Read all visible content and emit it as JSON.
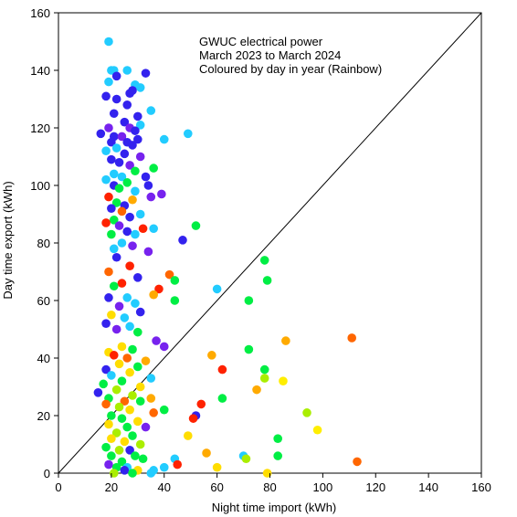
{
  "chart_data": {
    "type": "scatter",
    "title_lines": [
      "GWUC electrical power",
      "March 2023 to March 2024",
      "Coloured by day in year  (Rainbow)"
    ],
    "xlabel": "Night time import (kWh)",
    "ylabel": "Day time export (kWh)",
    "xlim": [
      0,
      160
    ],
    "ylim": [
      0,
      160
    ],
    "x_ticks": [
      0,
      20,
      40,
      60,
      80,
      100,
      120,
      140,
      160
    ],
    "y_ticks": [
      0,
      20,
      40,
      60,
      80,
      100,
      120,
      140,
      160
    ],
    "reference_line": {
      "from": [
        0,
        0
      ],
      "to": [
        160,
        160
      ]
    },
    "grid": false,
    "legend": "none",
    "color_scale": "rainbow by day in year",
    "points": [
      {
        "x": 19,
        "y": 150,
        "color": "#22ccff"
      },
      {
        "x": 20,
        "y": 140,
        "color": "#22ccff"
      },
      {
        "x": 21,
        "y": 140,
        "color": "#22ccff"
      },
      {
        "x": 26,
        "y": 140,
        "color": "#22ccff"
      },
      {
        "x": 33,
        "y": 139,
        "color": "#3322ee"
      },
      {
        "x": 22,
        "y": 138,
        "color": "#3322ee"
      },
      {
        "x": 19,
        "y": 136,
        "color": "#22ccff"
      },
      {
        "x": 29,
        "y": 135,
        "color": "#22ccff"
      },
      {
        "x": 31,
        "y": 134,
        "color": "#22ccff"
      },
      {
        "x": 28,
        "y": 133,
        "color": "#3322ee"
      },
      {
        "x": 27,
        "y": 132,
        "color": "#3322ee"
      },
      {
        "x": 18,
        "y": 131,
        "color": "#3322ee"
      },
      {
        "x": 22,
        "y": 130,
        "color": "#3322ee"
      },
      {
        "x": 26,
        "y": 128,
        "color": "#3322ee"
      },
      {
        "x": 35,
        "y": 126,
        "color": "#22ccff"
      },
      {
        "x": 21,
        "y": 125,
        "color": "#3322ee"
      },
      {
        "x": 30,
        "y": 124,
        "color": "#3322ee"
      },
      {
        "x": 25,
        "y": 122,
        "color": "#3322ee"
      },
      {
        "x": 31,
        "y": 121,
        "color": "#22ccff"
      },
      {
        "x": 19,
        "y": 120,
        "color": "#7722ee"
      },
      {
        "x": 27,
        "y": 120,
        "color": "#7722ee"
      },
      {
        "x": 29,
        "y": 119,
        "color": "#3322ee"
      },
      {
        "x": 49,
        "y": 118,
        "color": "#22ccff"
      },
      {
        "x": 16,
        "y": 118,
        "color": "#3322ee"
      },
      {
        "x": 21,
        "y": 117,
        "color": "#3322ee"
      },
      {
        "x": 24,
        "y": 117,
        "color": "#7722ee"
      },
      {
        "x": 30,
        "y": 116,
        "color": "#3322ee"
      },
      {
        "x": 40,
        "y": 116,
        "color": "#22ccff"
      },
      {
        "x": 20,
        "y": 115,
        "color": "#3322ee"
      },
      {
        "x": 26,
        "y": 115,
        "color": "#3322ee"
      },
      {
        "x": 28,
        "y": 114,
        "color": "#3322ee"
      },
      {
        "x": 22,
        "y": 113,
        "color": "#22ccff"
      },
      {
        "x": 18,
        "y": 112,
        "color": "#22ccff"
      },
      {
        "x": 25,
        "y": 111,
        "color": "#3322ee"
      },
      {
        "x": 31,
        "y": 110,
        "color": "#7722ee"
      },
      {
        "x": 20,
        "y": 109,
        "color": "#3322ee"
      },
      {
        "x": 23,
        "y": 108,
        "color": "#3322ee"
      },
      {
        "x": 27,
        "y": 107,
        "color": "#7722ee"
      },
      {
        "x": 36,
        "y": 106,
        "color": "#00ee44"
      },
      {
        "x": 29,
        "y": 105,
        "color": "#00ee44"
      },
      {
        "x": 21,
        "y": 104,
        "color": "#22ccff"
      },
      {
        "x": 24,
        "y": 103,
        "color": "#22ccff"
      },
      {
        "x": 33,
        "y": 103,
        "color": "#3322ee"
      },
      {
        "x": 18,
        "y": 102,
        "color": "#22ccff"
      },
      {
        "x": 26,
        "y": 101,
        "color": "#00ee44"
      },
      {
        "x": 34,
        "y": 100,
        "color": "#3322ee"
      },
      {
        "x": 21,
        "y": 100,
        "color": "#3322ee"
      },
      {
        "x": 23,
        "y": 99,
        "color": "#00ee44"
      },
      {
        "x": 29,
        "y": 98,
        "color": "#22ccff"
      },
      {
        "x": 39,
        "y": 97,
        "color": "#7722ee"
      },
      {
        "x": 35,
        "y": 96,
        "color": "#7722ee"
      },
      {
        "x": 19,
        "y": 96,
        "color": "#ff2200"
      },
      {
        "x": 28,
        "y": 95,
        "color": "#ffaa00"
      },
      {
        "x": 22,
        "y": 94,
        "color": "#00ee44"
      },
      {
        "x": 25,
        "y": 93,
        "color": "#3322ee"
      },
      {
        "x": 20,
        "y": 92,
        "color": "#3322ee"
      },
      {
        "x": 24,
        "y": 91,
        "color": "#ff6600"
      },
      {
        "x": 31,
        "y": 90,
        "color": "#22ccff"
      },
      {
        "x": 27,
        "y": 89,
        "color": "#3322ee"
      },
      {
        "x": 21,
        "y": 88,
        "color": "#00ee44"
      },
      {
        "x": 18,
        "y": 87,
        "color": "#ff2200"
      },
      {
        "x": 23,
        "y": 86,
        "color": "#7722ee"
      },
      {
        "x": 52,
        "y": 86,
        "color": "#00ee44"
      },
      {
        "x": 32,
        "y": 85,
        "color": "#ff2200"
      },
      {
        "x": 36,
        "y": 85,
        "color": "#22ccff"
      },
      {
        "x": 26,
        "y": 84,
        "color": "#3322ee"
      },
      {
        "x": 29,
        "y": 83,
        "color": "#22ccff"
      },
      {
        "x": 20,
        "y": 83,
        "color": "#00ee44"
      },
      {
        "x": 47,
        "y": 81,
        "color": "#3322ee"
      },
      {
        "x": 24,
        "y": 80,
        "color": "#22ccff"
      },
      {
        "x": 28,
        "y": 79,
        "color": "#7722ee"
      },
      {
        "x": 21,
        "y": 78,
        "color": "#22ccff"
      },
      {
        "x": 34,
        "y": 77,
        "color": "#7722ee"
      },
      {
        "x": 22,
        "y": 75,
        "color": "#3322ee"
      },
      {
        "x": 78,
        "y": 74,
        "color": "#00ee44"
      },
      {
        "x": 27,
        "y": 72,
        "color": "#ff2200"
      },
      {
        "x": 19,
        "y": 70,
        "color": "#ff6600"
      },
      {
        "x": 42,
        "y": 69,
        "color": "#ff6600"
      },
      {
        "x": 30,
        "y": 68,
        "color": "#3322ee"
      },
      {
        "x": 44,
        "y": 67,
        "color": "#00ee44"
      },
      {
        "x": 79,
        "y": 67,
        "color": "#00ee44"
      },
      {
        "x": 24,
        "y": 66,
        "color": "#ff2200"
      },
      {
        "x": 21,
        "y": 65,
        "color": "#00ee44"
      },
      {
        "x": 60,
        "y": 64,
        "color": "#22ccff"
      },
      {
        "x": 38,
        "y": 64,
        "color": "#ff2200"
      },
      {
        "x": 36,
        "y": 62,
        "color": "#ffaa00"
      },
      {
        "x": 26,
        "y": 61,
        "color": "#22ccff"
      },
      {
        "x": 19,
        "y": 61,
        "color": "#3322ee"
      },
      {
        "x": 44,
        "y": 60,
        "color": "#00ee44"
      },
      {
        "x": 72,
        "y": 60,
        "color": "#00ee44"
      },
      {
        "x": 29,
        "y": 59,
        "color": "#22ccff"
      },
      {
        "x": 23,
        "y": 58,
        "color": "#7722ee"
      },
      {
        "x": 31,
        "y": 56,
        "color": "#3322ee"
      },
      {
        "x": 20,
        "y": 55,
        "color": "#ffdd00"
      },
      {
        "x": 25,
        "y": 54,
        "color": "#22ccff"
      },
      {
        "x": 18,
        "y": 52,
        "color": "#3322ee"
      },
      {
        "x": 27,
        "y": 51,
        "color": "#22ccff"
      },
      {
        "x": 22,
        "y": 50,
        "color": "#7722ee"
      },
      {
        "x": 30,
        "y": 49,
        "color": "#00ee44"
      },
      {
        "x": 111,
        "y": 47,
        "color": "#ff6600"
      },
      {
        "x": 86,
        "y": 46,
        "color": "#ffaa00"
      },
      {
        "x": 37,
        "y": 46,
        "color": "#7722ee"
      },
      {
        "x": 40,
        "y": 44,
        "color": "#7722ee"
      },
      {
        "x": 24,
        "y": 44,
        "color": "#ffdd00"
      },
      {
        "x": 28,
        "y": 43,
        "color": "#00ee44"
      },
      {
        "x": 72,
        "y": 43,
        "color": "#00ee44"
      },
      {
        "x": 19,
        "y": 42,
        "color": "#ffdd00"
      },
      {
        "x": 21,
        "y": 41,
        "color": "#ff2200"
      },
      {
        "x": 58,
        "y": 41,
        "color": "#ffaa00"
      },
      {
        "x": 26,
        "y": 40,
        "color": "#ff6600"
      },
      {
        "x": 33,
        "y": 39,
        "color": "#ffaa00"
      },
      {
        "x": 23,
        "y": 38,
        "color": "#ffdd00"
      },
      {
        "x": 30,
        "y": 37,
        "color": "#00ee44"
      },
      {
        "x": 18,
        "y": 36,
        "color": "#3322ee"
      },
      {
        "x": 62,
        "y": 36,
        "color": "#ff2200"
      },
      {
        "x": 78,
        "y": 36,
        "color": "#00ee44"
      },
      {
        "x": 27,
        "y": 35,
        "color": "#ffdd00"
      },
      {
        "x": 20,
        "y": 34,
        "color": "#22ccff"
      },
      {
        "x": 35,
        "y": 33,
        "color": "#22ccff"
      },
      {
        "x": 78,
        "y": 33,
        "color": "#aaee00"
      },
      {
        "x": 85,
        "y": 32,
        "color": "#ffee00"
      },
      {
        "x": 24,
        "y": 32,
        "color": "#00ee44"
      },
      {
        "x": 17,
        "y": 31,
        "color": "#00ee44"
      },
      {
        "x": 31,
        "y": 30,
        "color": "#ffdd00"
      },
      {
        "x": 75,
        "y": 29,
        "color": "#ffaa00"
      },
      {
        "x": 22,
        "y": 29,
        "color": "#aaee00"
      },
      {
        "x": 15,
        "y": 28,
        "color": "#3322ee"
      },
      {
        "x": 28,
        "y": 27,
        "color": "#aaee00"
      },
      {
        "x": 19,
        "y": 26,
        "color": "#00ee44"
      },
      {
        "x": 35,
        "y": 26,
        "color": "#ffaa00"
      },
      {
        "x": 62,
        "y": 26,
        "color": "#00ee44"
      },
      {
        "x": 25,
        "y": 25,
        "color": "#ff6600"
      },
      {
        "x": 31,
        "y": 25,
        "color": "#00ee44"
      },
      {
        "x": 54,
        "y": 24,
        "color": "#ff2200"
      },
      {
        "x": 18,
        "y": 24,
        "color": "#ff6600"
      },
      {
        "x": 23,
        "y": 23,
        "color": "#aaee00"
      },
      {
        "x": 27,
        "y": 22,
        "color": "#ffdd00"
      },
      {
        "x": 40,
        "y": 22,
        "color": "#00ee44"
      },
      {
        "x": 36,
        "y": 21,
        "color": "#ff6600"
      },
      {
        "x": 94,
        "y": 21,
        "color": "#aaee00"
      },
      {
        "x": 20,
        "y": 20,
        "color": "#00ee44"
      },
      {
        "x": 52,
        "y": 20,
        "color": "#3322ee"
      },
      {
        "x": 51,
        "y": 19,
        "color": "#ff2200"
      },
      {
        "x": 24,
        "y": 19,
        "color": "#00ee44"
      },
      {
        "x": 30,
        "y": 18,
        "color": "#ffdd00"
      },
      {
        "x": 19,
        "y": 17,
        "color": "#ffdd00"
      },
      {
        "x": 33,
        "y": 16,
        "color": "#7722ee"
      },
      {
        "x": 26,
        "y": 16,
        "color": "#00ee44"
      },
      {
        "x": 98,
        "y": 15,
        "color": "#ffee00"
      },
      {
        "x": 22,
        "y": 14,
        "color": "#aaee00"
      },
      {
        "x": 28,
        "y": 13,
        "color": "#00ee44"
      },
      {
        "x": 49,
        "y": 13,
        "color": "#ffdd00"
      },
      {
        "x": 20,
        "y": 12,
        "color": "#ffdd00"
      },
      {
        "x": 83,
        "y": 12,
        "color": "#00ee44"
      },
      {
        "x": 25,
        "y": 11,
        "color": "#ffdd00"
      },
      {
        "x": 31,
        "y": 10,
        "color": "#aaee00"
      },
      {
        "x": 18,
        "y": 9,
        "color": "#00ee44"
      },
      {
        "x": 23,
        "y": 8,
        "color": "#aaee00"
      },
      {
        "x": 27,
        "y": 8,
        "color": "#3322ee"
      },
      {
        "x": 56,
        "y": 7,
        "color": "#ffaa00"
      },
      {
        "x": 70,
        "y": 6,
        "color": "#22ccff"
      },
      {
        "x": 83,
        "y": 6,
        "color": "#00ee44"
      },
      {
        "x": 20,
        "y": 6,
        "color": "#00ee44"
      },
      {
        "x": 29,
        "y": 6,
        "color": "#00ee44"
      },
      {
        "x": 44,
        "y": 5,
        "color": "#22ccff"
      },
      {
        "x": 32,
        "y": 5,
        "color": "#00ee44"
      },
      {
        "x": 71,
        "y": 5,
        "color": "#aaee00"
      },
      {
        "x": 113,
        "y": 4,
        "color": "#ff6600"
      },
      {
        "x": 24,
        "y": 4,
        "color": "#00ee44"
      },
      {
        "x": 45,
        "y": 3,
        "color": "#ff2200"
      },
      {
        "x": 19,
        "y": 3,
        "color": "#7722ee"
      },
      {
        "x": 26,
        "y": 2,
        "color": "#22ccff"
      },
      {
        "x": 40,
        "y": 2,
        "color": "#22ccff"
      },
      {
        "x": 60,
        "y": 2,
        "color": "#ffdd00"
      },
      {
        "x": 22,
        "y": 2,
        "color": "#00ee44"
      },
      {
        "x": 30,
        "y": 1,
        "color": "#ffdd00"
      },
      {
        "x": 36,
        "y": 1,
        "color": "#22ccff"
      },
      {
        "x": 79,
        "y": 0,
        "color": "#ffdd00"
      },
      {
        "x": 25,
        "y": 1,
        "color": "#3322ee"
      },
      {
        "x": 35,
        "y": 0,
        "color": "#22ccff"
      },
      {
        "x": 21,
        "y": 0,
        "color": "#aaee00"
      },
      {
        "x": 28,
        "y": 0,
        "color": "#00ee44"
      }
    ]
  }
}
